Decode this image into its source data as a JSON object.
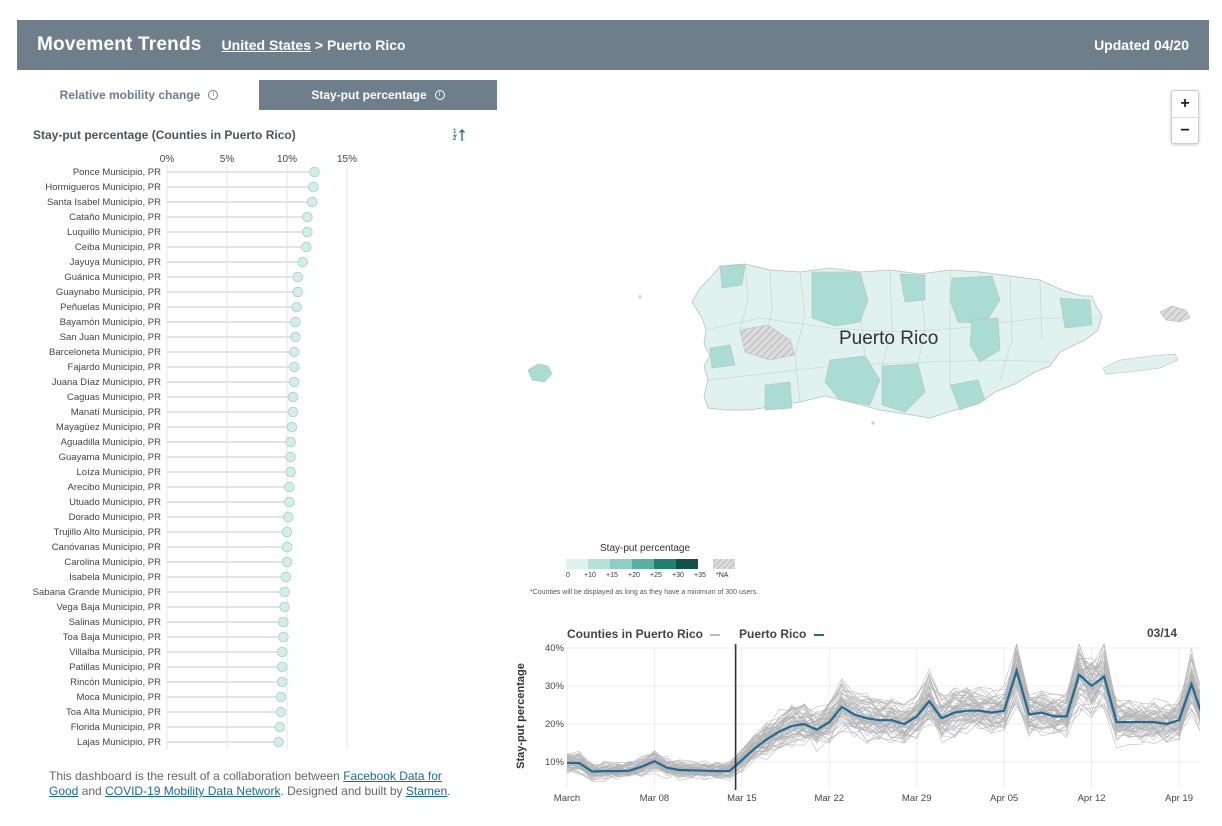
{
  "header": {
    "title": "Movement Trends",
    "breadcrumb_link": "United States",
    "breadcrumb_sep": ">",
    "breadcrumb_current": "Puerto Rico",
    "updated": "Updated 04/20"
  },
  "tabs": {
    "relative": "Relative mobility change",
    "stayput": "Stay-put percentage",
    "info_glyph": "i"
  },
  "county_list": {
    "title": "Stay-put percentage (Counties in Puerto Rico)",
    "sort_icon_text": "1 2",
    "axis_ticks": [
      "0%",
      "5%",
      "10%",
      "15%"
    ],
    "axis_max": 15,
    "counties": [
      {
        "name": "Ponce Municipio, PR",
        "value": 12.3
      },
      {
        "name": "Hormigueros Municipio, PR",
        "value": 12.2
      },
      {
        "name": "Santa Isabel Municipio, PR",
        "value": 12.1
      },
      {
        "name": "Cataño Municipio, PR",
        "value": 11.7
      },
      {
        "name": "Luquillo Municipio, PR",
        "value": 11.7
      },
      {
        "name": "Ceiba Municipio, PR",
        "value": 11.6
      },
      {
        "name": "Jayuya Municipio, PR",
        "value": 11.3
      },
      {
        "name": "Guánica Municipio, PR",
        "value": 10.9
      },
      {
        "name": "Guaynabo Municipio, PR",
        "value": 10.9
      },
      {
        "name": "Peñuelas Municipio, PR",
        "value": 10.8
      },
      {
        "name": "Bayamón Municipio, PR",
        "value": 10.7
      },
      {
        "name": "San Juan Municipio, PR",
        "value": 10.7
      },
      {
        "name": "Barceloneta Municipio, PR",
        "value": 10.6
      },
      {
        "name": "Fajardo Municipio, PR",
        "value": 10.6
      },
      {
        "name": "Juana Díaz Municipio, PR",
        "value": 10.6
      },
      {
        "name": "Caguas Municipio, PR",
        "value": 10.5
      },
      {
        "name": "Manatí Municipio, PR",
        "value": 10.5
      },
      {
        "name": "Mayagüez Municipio, PR",
        "value": 10.4
      },
      {
        "name": "Aguadilla Municipio, PR",
        "value": 10.3
      },
      {
        "name": "Guayama Municipio, PR",
        "value": 10.3
      },
      {
        "name": "Loíza Municipio, PR",
        "value": 10.3
      },
      {
        "name": "Arecibo Municipio, PR",
        "value": 10.2
      },
      {
        "name": "Utuado Municipio, PR",
        "value": 10.2
      },
      {
        "name": "Dorado Municipio, PR",
        "value": 10.1
      },
      {
        "name": "Trujillo Alto Municipio, PR",
        "value": 10.0
      },
      {
        "name": "Canóvanas Municipio, PR",
        "value": 10.0
      },
      {
        "name": "Carolina Municipio, PR",
        "value": 10.0
      },
      {
        "name": "Isabela Municipio, PR",
        "value": 9.9
      },
      {
        "name": "Sabana Grande Municipio, PR",
        "value": 9.8
      },
      {
        "name": "Vega Baja Municipio, PR",
        "value": 9.8
      },
      {
        "name": "Salinas Municipio, PR",
        "value": 9.7
      },
      {
        "name": "Toa Baja Municipio, PR",
        "value": 9.7
      },
      {
        "name": "Villalba Municipio, PR",
        "value": 9.6
      },
      {
        "name": "Patillas Municipio, PR",
        "value": 9.6
      },
      {
        "name": "Rincón Municipio, PR",
        "value": 9.6
      },
      {
        "name": "Moca Municipio, PR",
        "value": 9.5
      },
      {
        "name": "Toa Alta Municipio, PR",
        "value": 9.5
      },
      {
        "name": "Florida Municipio, PR",
        "value": 9.4
      },
      {
        "name": "Lajas Municipio, PR",
        "value": 9.3
      }
    ]
  },
  "footer": {
    "text1": "This dashboard is the result of a collaboration between ",
    "link1": "Facebook Data for Good",
    "text2": " and ",
    "link2": "COVID-19 Mobility Data Network",
    "text3": ". Designed and built by ",
    "link3": "Stamen",
    "text4": "."
  },
  "map": {
    "label": "Puerto Rico",
    "zoom_in": "+",
    "zoom_out": "−",
    "colors": {
      "light": "#dff2ee",
      "mid": "#a9dcd2",
      "dark": "#8fcec1",
      "na": "#d2d2d2",
      "border": "#b4c4c0"
    }
  },
  "legend": {
    "title": "Stay-put percentage",
    "ticks": [
      "0",
      "+10",
      "+15",
      "+20",
      "+25",
      "+30",
      "+35"
    ],
    "na_label": "*NA",
    "colors": [
      "#def2ee",
      "#b5e1d8",
      "#8dcfc2",
      "#58b0a2",
      "#1e7f72",
      "#10514a"
    ],
    "note": "*Counties will be displayed as long as they have a minimum of 300 users."
  },
  "chart_data": {
    "type": "line",
    "legend_gray": "Counties in Puerto Rico",
    "legend_blue": "Puerto Rico",
    "selected_date": "03/14",
    "ylabel": "Stay-put percentage",
    "ylim": [
      0,
      42
    ],
    "yticks": [
      10,
      20,
      30,
      40
    ],
    "ytick_labels": [
      "10%",
      "20%",
      "30%",
      "40%"
    ],
    "x_start": "March 1",
    "x_ticks": [
      {
        "day": 0,
        "label": "March"
      },
      {
        "day": 7,
        "label": "Mar 08"
      },
      {
        "day": 14,
        "label": "Mar 15"
      },
      {
        "day": 21,
        "label": "Mar 22"
      },
      {
        "day": 28,
        "label": "Mar 29"
      },
      {
        "day": 35,
        "label": "Apr 05"
      },
      {
        "day": 42,
        "label": "Apr 12"
      },
      {
        "day": 49,
        "label": "Apr 19"
      }
    ],
    "selected_day": 13.5,
    "series": [
      {
        "name": "Puerto Rico",
        "values": [
          9.8,
          9.7,
          7.5,
          7.6,
          7.6,
          7.7,
          8.8,
          10.2,
          8.5,
          7.9,
          7.8,
          7.7,
          7.6,
          7.6,
          10.5,
          13.5,
          16.0,
          18.0,
          19.5,
          20.0,
          18.5,
          20.5,
          24.5,
          22.5,
          21.5,
          21.0,
          21.0,
          20.0,
          22.0,
          26.0,
          21.5,
          23.0,
          23.5,
          23.5,
          23.0,
          23.5,
          34.0,
          22.5,
          23.0,
          22.0,
          22.0,
          33.0,
          30.0,
          32.5,
          20.5,
          20.5,
          20.5,
          20.5,
          20.0,
          21.0,
          30.5,
          21.0
        ]
      }
    ]
  }
}
